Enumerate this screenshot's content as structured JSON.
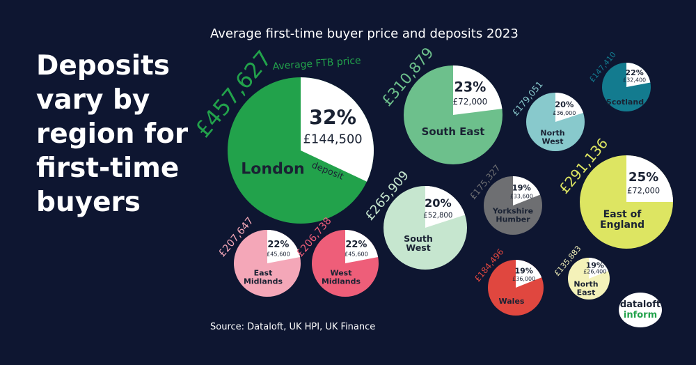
{
  "chart_data": {
    "type": "pie-bubble",
    "heading": "Deposits vary by region for first-time buyers",
    "title": "Average first-time buyer price and deposits 2023",
    "source": "Source: Dataloft, UK HPI, UK Finance",
    "annotations": [
      "Average FTB price",
      "deposit"
    ],
    "logo": [
      "dataloft",
      "inform"
    ],
    "categories": [
      "London",
      "South East",
      "North West",
      "Scotland",
      "East of England",
      "Yorkshire Humber",
      "South West",
      "East Midlands",
      "West Midlands",
      "Wales",
      "North East"
    ],
    "colors": [
      "#22a24b",
      "#6dc08c",
      "#88c9cc",
      "#137b8f",
      "#dde562",
      "#6e6f72",
      "#c6e6cf",
      "#f4a7b8",
      "#ee5e79",
      "#e0473f",
      "#f4f2b9"
    ],
    "prices": [
      457627,
      310879,
      179051,
      147410,
      291136,
      175327,
      265909,
      207647,
      206738,
      184496,
      135883
    ],
    "price_labels": [
      "£457,627",
      "£310,879",
      "£179,051",
      "£147,410",
      "£291,136",
      "£175,327",
      "£265,909",
      "£207,647",
      "£206,738",
      "£184,496",
      "£135,883"
    ],
    "deposit_shares": [
      32,
      23,
      20,
      22,
      25,
      19,
      20,
      22,
      22,
      19,
      19
    ],
    "deposit_share_labels": [
      "32%",
      "23%",
      "20%",
      "22%",
      "25%",
      "19%",
      "20%",
      "22%",
      "22%",
      "19%",
      "19%"
    ],
    "deposits": [
      144500,
      72000,
      36000,
      32400,
      72000,
      33600,
      52800,
      45600,
      45600,
      36000,
      26400
    ],
    "deposit_labels": [
      "£144,500",
      "£72,000",
      "£36,000",
      "£32,400",
      "£72,000",
      "£33,600",
      "£52,800",
      "£45,600",
      "£45,600",
      "£36,000",
      "£26,400"
    ]
  }
}
